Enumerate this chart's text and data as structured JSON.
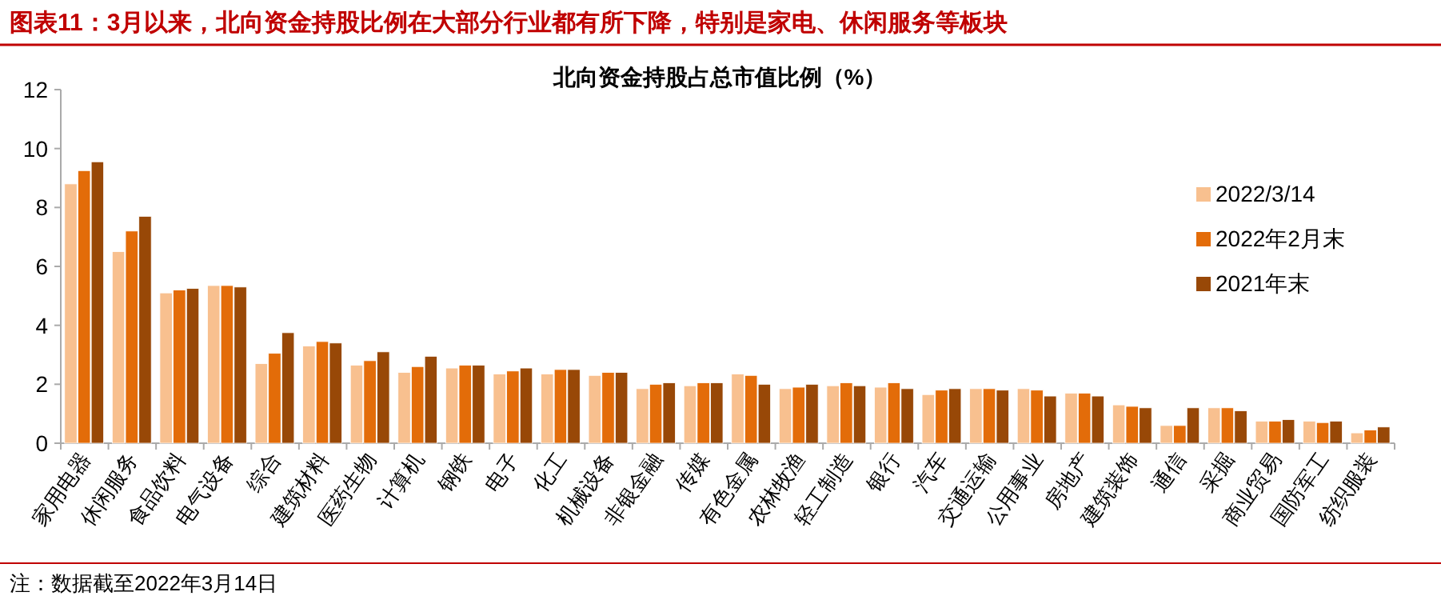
{
  "chart_data": {
    "type": "bar",
    "title": "图表11：3月以来，北向资金持股比例在大部分行业都有所下降，特别是家电、休闲服务等板块",
    "subtitle": "北向资金持股占总市值比例（%）",
    "categories": [
      "家用电器",
      "休闲服务",
      "食品饮料",
      "电气设备",
      "综合",
      "建筑材料",
      "医药生物",
      "计算机",
      "钢铁",
      "电子",
      "化工",
      "机械设备",
      "非银金融",
      "传媒",
      "有色金属",
      "农林牧渔",
      "轻工制造",
      "银行",
      "汽车",
      "交通运输",
      "公用事业",
      "房地产",
      "建筑装饰",
      "通信",
      "采掘",
      "商业贸易",
      "国防军工",
      "纺织服装"
    ],
    "series": [
      {
        "name": "2022/3/14",
        "color": "#f8c08f",
        "values": [
          8.8,
          6.5,
          5.1,
          5.35,
          2.7,
          3.3,
          2.65,
          2.4,
          2.55,
          2.35,
          2.35,
          2.3,
          1.85,
          1.95,
          2.35,
          1.85,
          1.95,
          1.9,
          1.65,
          1.85,
          1.85,
          1.7,
          1.3,
          0.6,
          1.2,
          0.75,
          0.75,
          0.35
        ]
      },
      {
        "name": "2022年2月末",
        "color": "#e36c09",
        "values": [
          9.25,
          7.2,
          5.2,
          5.35,
          3.05,
          3.45,
          2.8,
          2.6,
          2.65,
          2.45,
          2.5,
          2.4,
          2.0,
          2.05,
          2.3,
          1.9,
          2.05,
          2.05,
          1.8,
          1.85,
          1.8,
          1.7,
          1.25,
          0.6,
          1.2,
          0.75,
          0.7,
          0.45
        ]
      },
      {
        "name": "2021年末",
        "color": "#984807",
        "values": [
          9.55,
          7.7,
          5.25,
          5.3,
          3.75,
          3.4,
          3.1,
          2.95,
          2.65,
          2.55,
          2.5,
          2.4,
          2.05,
          2.05,
          2.0,
          2.0,
          1.95,
          1.85,
          1.85,
          1.8,
          1.6,
          1.6,
          1.2,
          1.2,
          1.1,
          0.8,
          0.75,
          0.55
        ]
      }
    ],
    "ylim": [
      0,
      12
    ],
    "yticks": [
      0,
      2,
      4,
      6,
      8,
      10,
      12
    ],
    "grid": false,
    "legend": "right",
    "annotations": [
      "注：数据截至2022年3月14日"
    ]
  }
}
